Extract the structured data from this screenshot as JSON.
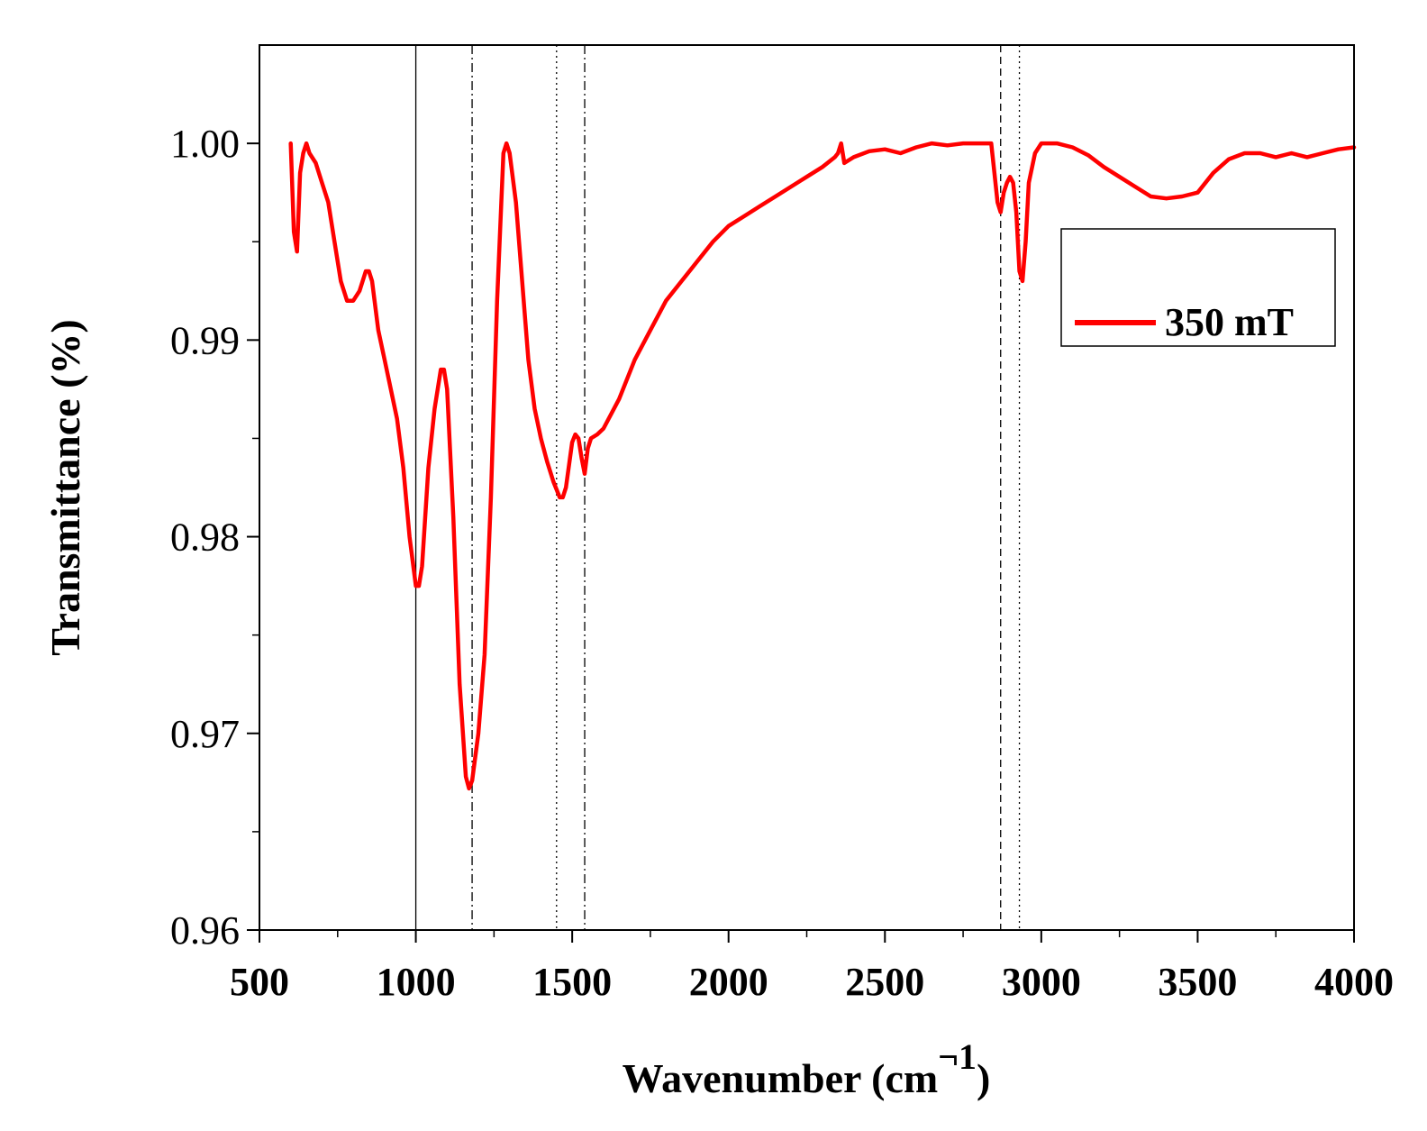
{
  "chart_data": {
    "type": "line",
    "title": "",
    "xlabel": "Wavenumber (cm",
    "xlabel_superscript": "¬1",
    "xlabel_suffix": ")",
    "ylabel": "Transmittance (%)",
    "xlim": [
      500,
      4000
    ],
    "ylim": [
      0.96,
      1.005
    ],
    "x_ticks": [
      500,
      1000,
      1500,
      2000,
      2500,
      3000,
      3500,
      4000
    ],
    "x_tick_labels": [
      "500",
      "1000",
      "1500",
      "2000",
      "2500",
      "3000",
      "3500",
      "4000"
    ],
    "y_ticks": [
      0.96,
      0.97,
      0.98,
      0.99,
      1.0
    ],
    "y_tick_labels": [
      "0.96",
      "0.97",
      "0.98",
      "0.99",
      "1.00"
    ],
    "grid": false,
    "legend_position": "top-right",
    "series": [
      {
        "name": "350 mT",
        "color": "#ff0000",
        "x": [
          600,
          610,
          620,
          630,
          640,
          650,
          660,
          680,
          700,
          720,
          740,
          760,
          780,
          800,
          820,
          840,
          850,
          860,
          880,
          900,
          920,
          940,
          960,
          980,
          1000,
          1010,
          1020,
          1030,
          1040,
          1060,
          1080,
          1090,
          1100,
          1120,
          1140,
          1160,
          1170,
          1180,
          1200,
          1220,
          1240,
          1260,
          1280,
          1290,
          1300,
          1320,
          1340,
          1360,
          1380,
          1400,
          1420,
          1440,
          1460,
          1470,
          1480,
          1500,
          1510,
          1520,
          1530,
          1540,
          1550,
          1560,
          1580,
          1600,
          1650,
          1700,
          1750,
          1800,
          1850,
          1900,
          1950,
          2000,
          2050,
          2100,
          2150,
          2200,
          2250,
          2300,
          2340,
          2350,
          2360,
          2370,
          2400,
          2450,
          2500,
          2550,
          2600,
          2650,
          2700,
          2750,
          2800,
          2840,
          2850,
          2860,
          2870,
          2880,
          2890,
          2900,
          2910,
          2920,
          2930,
          2940,
          2950,
          2960,
          2980,
          3000,
          3050,
          3100,
          3150,
          3200,
          3250,
          3300,
          3350,
          3400,
          3450,
          3500,
          3550,
          3600,
          3650,
          3700,
          3750,
          3800,
          3850,
          3900,
          3950,
          4000
        ],
        "values": [
          1.0,
          0.9955,
          0.9945,
          0.9985,
          0.9995,
          1.0,
          0.9995,
          0.999,
          0.998,
          0.997,
          0.995,
          0.993,
          0.992,
          0.992,
          0.9925,
          0.9935,
          0.9935,
          0.993,
          0.9905,
          0.989,
          0.9875,
          0.986,
          0.9835,
          0.98,
          0.9775,
          0.9775,
          0.9785,
          0.981,
          0.9835,
          0.9865,
          0.9885,
          0.9885,
          0.9875,
          0.981,
          0.9725,
          0.9678,
          0.9672,
          0.9676,
          0.97,
          0.974,
          0.982,
          0.992,
          0.9995,
          1.0,
          0.9995,
          0.997,
          0.993,
          0.989,
          0.9865,
          0.985,
          0.9838,
          0.9828,
          0.982,
          0.982,
          0.9825,
          0.9848,
          0.9852,
          0.985,
          0.984,
          0.9832,
          0.9845,
          0.985,
          0.9852,
          0.9855,
          0.987,
          0.989,
          0.9905,
          0.992,
          0.993,
          0.994,
          0.995,
          0.9958,
          0.9963,
          0.9968,
          0.9973,
          0.9978,
          0.9983,
          0.9988,
          0.9993,
          0.9995,
          1.0,
          0.999,
          0.9993,
          0.9996,
          0.9997,
          0.9995,
          0.9998,
          1.0,
          0.9999,
          1.0,
          1.0,
          1.0,
          0.9985,
          0.997,
          0.9965,
          0.9975,
          0.998,
          0.9983,
          0.998,
          0.9965,
          0.9935,
          0.993,
          0.995,
          0.998,
          0.9995,
          1.0,
          1.0,
          0.9998,
          0.9994,
          0.9988,
          0.9983,
          0.9978,
          0.9973,
          0.9972,
          0.9973,
          0.9975,
          0.9985,
          0.9992,
          0.9995,
          0.9995,
          0.9993,
          0.9995,
          0.9993,
          0.9995,
          0.9997,
          0.9998
        ]
      }
    ],
    "marker_lines": [
      {
        "x": 1000,
        "style": "solid"
      },
      {
        "x": 1180,
        "style": "dash-dot"
      },
      {
        "x": 1450,
        "style": "dotted"
      },
      {
        "x": 1540,
        "style": "dash-dot"
      },
      {
        "x": 2870,
        "style": "dashed"
      },
      {
        "x": 2930,
        "style": "dotted"
      }
    ]
  }
}
